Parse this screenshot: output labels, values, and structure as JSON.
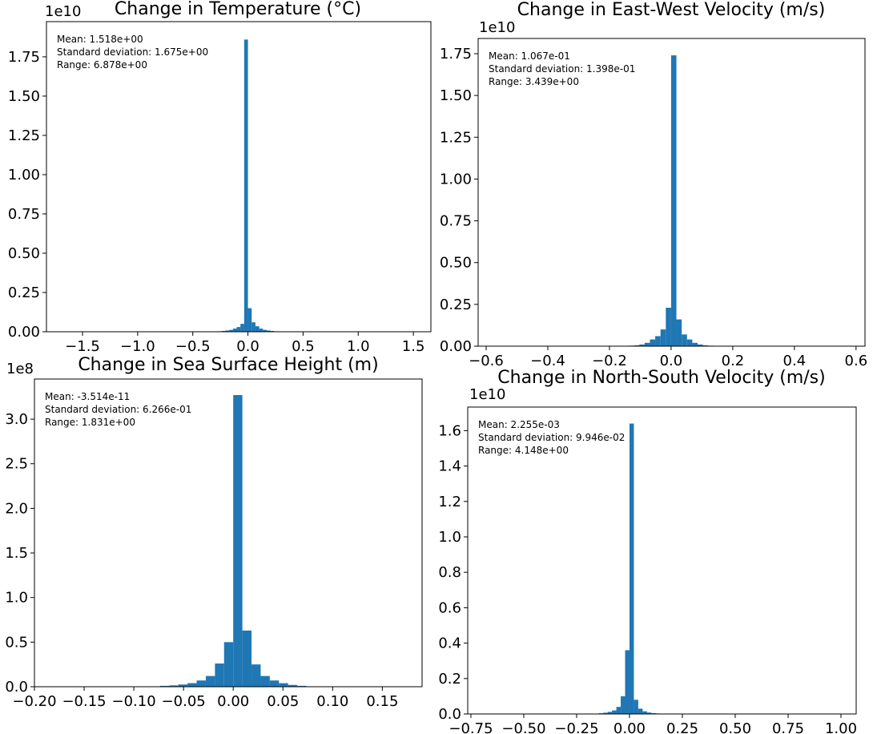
{
  "chart_data": [
    {
      "type": "histogram",
      "title": "Change in Temperature (°C)",
      "offset_label": "1e10",
      "color": "#1f77b4",
      "stats": [
        "Mean: 1.518e+00",
        "Standard deviation: 1.675e+00",
        "Range: 6.878e+00"
      ],
      "bins": [
        -0.306,
        -0.272,
        -0.238,
        -0.204,
        -0.17,
        -0.136,
        -0.102,
        -0.068,
        -0.034,
        0,
        0.034,
        0.068,
        0.102,
        0.136,
        0.17,
        0.204,
        0.238,
        0.272,
        0.306
      ],
      "values": [
        0.002,
        0.003,
        0.005,
        0.008,
        0.012,
        0.02,
        0.03,
        0.05,
        1.86,
        0.15,
        0.06,
        0.035,
        0.02,
        0.012,
        0.008,
        0.005,
        0.003,
        0.002
      ],
      "xlim": [
        -1.827,
        1.659
      ],
      "ylim": [
        0,
        1.974
      ],
      "xticks": [
        {
          "value": -1.5,
          "label": "−1.5"
        },
        {
          "value": -1.0,
          "label": "−1.0"
        },
        {
          "value": -0.5,
          "label": "−0.5"
        },
        {
          "value": 0,
          "label": "0.0"
        },
        {
          "value": 0.5,
          "label": "0.5"
        },
        {
          "value": 1.0,
          "label": "1.0"
        },
        {
          "value": 1.5,
          "label": "1.5"
        }
      ],
      "yticks": [
        {
          "value": 0,
          "label": "0.00"
        },
        {
          "value": 0.25,
          "label": "0.25"
        },
        {
          "value": 0.5,
          "label": "0.50"
        },
        {
          "value": 0.75,
          "label": "0.75"
        },
        {
          "value": 1.0,
          "label": "1.00"
        },
        {
          "value": 1.25,
          "label": "1.25"
        },
        {
          "value": 1.5,
          "label": "1.50"
        },
        {
          "value": 1.75,
          "label": "1.75"
        }
      ]
    },
    {
      "type": "histogram",
      "title": "Change in East-West Velocity (m/s)",
      "offset_label": "1e10",
      "color": "#1f77b4",
      "stats": [
        "Mean: 1.067e-01",
        "Standard deviation: 1.398e-01",
        "Range: 3.439e+00"
      ],
      "bins": [
        -0.1376,
        -0.1204,
        -0.1032,
        -0.086,
        -0.0688,
        -0.0516,
        -0.0344,
        -0.0172,
        0,
        0.0172,
        0.0344,
        0.0516,
        0.0688,
        0.086,
        0.1032,
        0.1204,
        0.1376
      ],
      "values": [
        0.003,
        0.005,
        0.01,
        0.02,
        0.04,
        0.06,
        0.1,
        0.23,
        1.74,
        0.16,
        0.07,
        0.04,
        0.02,
        0.01,
        0.005,
        0.003
      ],
      "xlim": [
        -0.626,
        0.629
      ],
      "ylim": [
        0,
        1.841
      ],
      "xticks": [
        {
          "value": -0.6,
          "label": "−0.6"
        },
        {
          "value": -0.4,
          "label": "−0.4"
        },
        {
          "value": -0.2,
          "label": "−0.2"
        },
        {
          "value": 0,
          "label": "0.0"
        },
        {
          "value": 0.2,
          "label": "0.2"
        },
        {
          "value": 0.4,
          "label": "0.4"
        },
        {
          "value": 0.6,
          "label": "0.6"
        }
      ],
      "yticks": [
        {
          "value": 0,
          "label": "0.00"
        },
        {
          "value": 0.25,
          "label": "0.25"
        },
        {
          "value": 0.5,
          "label": "0.50"
        },
        {
          "value": 0.75,
          "label": "0.75"
        },
        {
          "value": 1.0,
          "label": "1.00"
        },
        {
          "value": 1.25,
          "label": "1.25"
        },
        {
          "value": 1.5,
          "label": "1.50"
        },
        {
          "value": 1.75,
          "label": "1.75"
        }
      ]
    },
    {
      "type": "histogram",
      "title": "Change in Sea Surface Height (m)",
      "offset_label": "1e8",
      "color": "#1f77b4",
      "stats": [
        "Mean: -3.514e-11",
        "Standard deviation: 6.266e-01",
        "Range: 1.831e+00"
      ],
      "bins": [
        -0.0736,
        -0.0644,
        -0.0552,
        -0.046,
        -0.0368,
        -0.0276,
        -0.0184,
        -0.0092,
        0,
        0.0092,
        0.0184,
        0.0276,
        0.0368,
        0.046,
        0.0552,
        0.0644,
        0.0736
      ],
      "values": [
        0.01,
        0.015,
        0.025,
        0.04,
        0.07,
        0.12,
        0.26,
        0.5,
        3.27,
        0.63,
        0.25,
        0.12,
        0.07,
        0.04,
        0.02,
        0.01
      ],
      "xlim": [
        -0.2,
        0.19
      ],
      "ylim": [
        0,
        3.45
      ],
      "xticks": [
        {
          "value": -0.2,
          "label": "−0.20"
        },
        {
          "value": -0.15,
          "label": "−0.15"
        },
        {
          "value": -0.1,
          "label": "−0.10"
        },
        {
          "value": -0.05,
          "label": "−0.05"
        },
        {
          "value": 0,
          "label": "0.00"
        },
        {
          "value": 0.05,
          "label": "0.05"
        },
        {
          "value": 0.1,
          "label": "0.10"
        },
        {
          "value": 0.15,
          "label": "0.15"
        }
      ],
      "yticks": [
        {
          "value": 0,
          "label": "0.0"
        },
        0.5,
        {
          "value": 1.0,
          "label": "1.0"
        },
        1.5,
        {
          "value": 2.0,
          "label": "2.0"
        },
        2.5,
        {
          "value": 3.0,
          "label": "3.0"
        }
      ]
    },
    {
      "type": "histogram",
      "title": "Change in North-South Velocity (m/s)",
      "offset_label": "1e10",
      "color": "#1f77b4",
      "stats": [
        "Mean: 2.255e-03",
        "Standard deviation: 9.946e-02",
        "Range: 4.148e+00"
      ],
      "bins": [
        -0.1656,
        -0.1449,
        -0.1242,
        -0.1035,
        -0.0828,
        -0.0621,
        -0.0414,
        -0.0207,
        0,
        0.0207,
        0.0414,
        0.0621,
        0.0828,
        0.1035,
        0.1242,
        0.1449,
        0.1656
      ],
      "values": [
        0.002,
        0.004,
        0.007,
        0.012,
        0.02,
        0.04,
        0.1,
        0.36,
        1.64,
        0.08,
        0.03,
        0.015,
        0.008,
        0.005,
        0.003,
        0.002
      ],
      "xlim": [
        -0.765,
        1.072
      ],
      "ylim": [
        0,
        1.733
      ],
      "xticks": [
        {
          "value": -0.75,
          "label": "−0.75"
        },
        {
          "value": -0.5,
          "label": "−0.50"
        },
        {
          "value": -0.25,
          "label": "−0.25"
        },
        {
          "value": 0,
          "label": "0.00"
        },
        {
          "value": 0.25,
          "label": "0.25"
        },
        {
          "value": 0.5,
          "label": "0.50"
        },
        {
          "value": 0.75,
          "label": "0.75"
        },
        {
          "value": 1.0,
          "label": "1.00"
        }
      ],
      "yticks": [
        {
          "value": 0,
          "label": "0.0"
        },
        0.2,
        0.4,
        0.6,
        0.8,
        {
          "value": 1.0,
          "label": "1.0"
        },
        1.2,
        1.4,
        1.6
      ]
    }
  ]
}
